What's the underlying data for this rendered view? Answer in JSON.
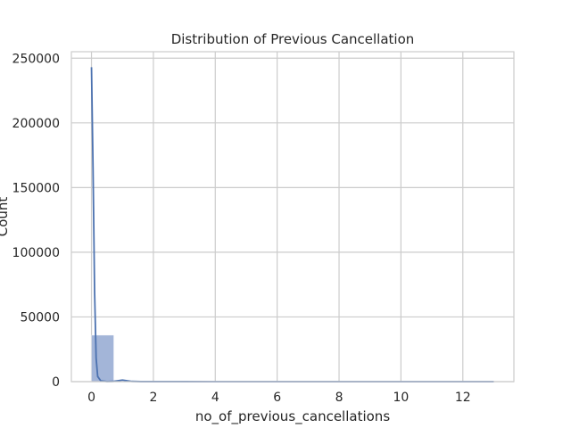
{
  "chart_data": {
    "type": "bar",
    "subtype": "histogram-with-kde",
    "title": "Distribution of Previous Cancellation",
    "xlabel": "no_of_previous_cancellations",
    "ylabel": "Count",
    "xlim": [
      -0.65,
      13.65
    ],
    "ylim": [
      0,
      255000
    ],
    "x_ticks": [
      0,
      2,
      4,
      6,
      8,
      10,
      12
    ],
    "y_ticks": [
      0,
      50000,
      100000,
      150000,
      200000,
      250000
    ],
    "grid": true,
    "bar_color": "#a3b5d8",
    "line_color": "#4c72b0",
    "bins": [
      {
        "x0": 0.0,
        "x1": 0.72,
        "count": 35900
      },
      {
        "x0": 0.72,
        "x1": 1.44,
        "count": 200
      },
      {
        "x0": 1.44,
        "x1": 2.17,
        "count": 40
      },
      {
        "x0": 2.17,
        "x1": 2.89,
        "count": 40
      },
      {
        "x0": 2.89,
        "x1": 3.61,
        "count": 25
      },
      {
        "x0": 3.61,
        "x1": 4.33,
        "count": 10
      },
      {
        "x0": 4.33,
        "x1": 5.06,
        "count": 10
      },
      {
        "x0": 5.06,
        "x1": 5.78,
        "count": 5
      },
      {
        "x0": 5.78,
        "x1": 6.5,
        "count": 5
      },
      {
        "x0": 10.83,
        "x1": 11.56,
        "count": 20
      },
      {
        "x0": 12.28,
        "x1": 13.0,
        "count": 10
      }
    ],
    "kde": {
      "x": [
        0.0,
        0.05,
        0.1,
        0.15,
        0.2,
        0.3,
        0.5,
        0.7,
        0.85,
        1.0,
        1.15,
        1.3,
        1.6,
        2.0,
        3.0,
        4.0,
        5.0,
        6.0,
        8.0,
        10.0,
        11.0,
        12.0,
        13.0
      ],
      "y": [
        243000,
        165000,
        70000,
        18000,
        4000,
        600,
        100,
        200,
        700,
        1200,
        700,
        200,
        40,
        40,
        30,
        15,
        10,
        5,
        3,
        3,
        8,
        8,
        5
      ]
    }
  }
}
